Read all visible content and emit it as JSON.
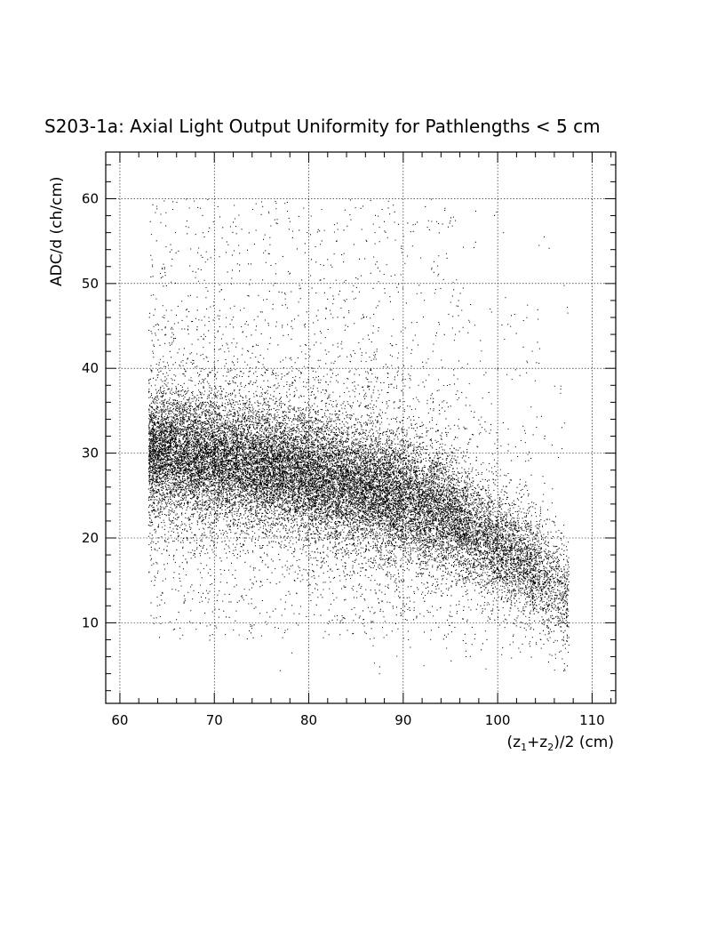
{
  "chart_data": {
    "type": "scatter",
    "title": "S203-1a: Axial Light Output Uniformity for Pathlengths < 5 cm",
    "xlabel_parts": [
      "(z",
      "1",
      "+z",
      "2",
      ")/2 (cm)"
    ],
    "ylabel": "ADC/d (ch/cm)",
    "xlim": [
      58.5,
      112.5
    ],
    "ylim": [
      0.5,
      65.5
    ],
    "x_ticks": [
      60,
      70,
      80,
      90,
      100,
      110
    ],
    "x_tick_labels": [
      "60",
      "70",
      "80",
      "90",
      "100",
      "110"
    ],
    "y_ticks": [
      10,
      20,
      30,
      40,
      50,
      60
    ],
    "y_tick_labels": [
      "10",
      "20",
      "30",
      "40",
      "50",
      "60"
    ],
    "grid": true,
    "marker_color": "#000000",
    "x_range_of_points": [
      63,
      107.5
    ],
    "density_profile": [
      {
        "x": 63,
        "y_peak": 30.5
      },
      {
        "x": 70,
        "y_peak": 29.5
      },
      {
        "x": 80,
        "y_peak": 27.5
      },
      {
        "x": 90,
        "y_peak": 25
      },
      {
        "x": 95,
        "y_peak": 22.5
      },
      {
        "x": 100,
        "y_peak": 19
      },
      {
        "x": 105,
        "y_peak": 15.5
      },
      {
        "x": 107,
        "y_peak": 13
      }
    ]
  }
}
